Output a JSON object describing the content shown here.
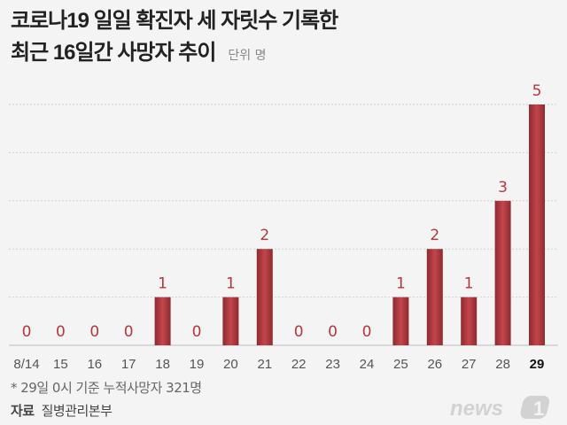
{
  "chart_data": {
    "type": "bar",
    "title_lines": [
      "코로나19 일일 확진자 세 자릿수 기록한",
      "최근 16일간 사망자 추이"
    ],
    "unit": "단위 명",
    "categories": [
      "8/14",
      "15",
      "16",
      "17",
      "18",
      "19",
      "20",
      "21",
      "22",
      "23",
      "24",
      "25",
      "26",
      "27",
      "28",
      "29"
    ],
    "values": [
      0,
      0,
      0,
      0,
      1,
      0,
      1,
      2,
      0,
      0,
      0,
      1,
      2,
      1,
      3,
      5
    ],
    "ylim": [
      0,
      5
    ],
    "grid": true,
    "bar_color": "#b8373f",
    "label_color": "#b8373f"
  },
  "footnote": "* 29일 0시 기준 누적사망자 321명",
  "source_label": "자료",
  "source": "질병관리본부",
  "logo": "news1"
}
